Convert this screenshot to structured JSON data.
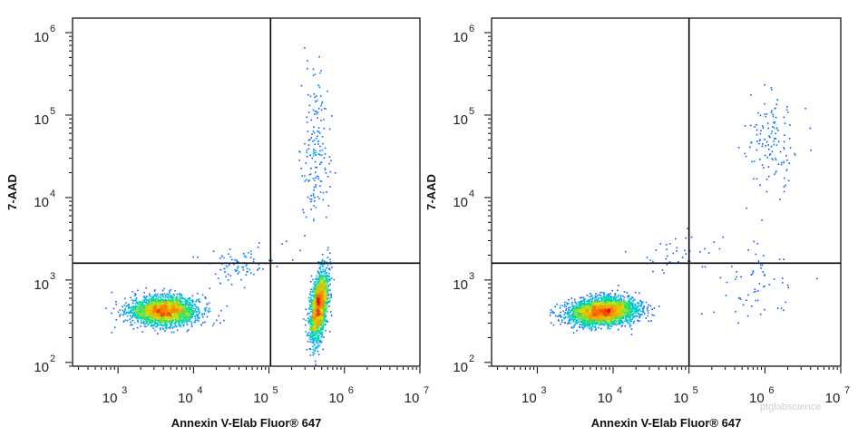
{
  "watermark": "ptglabscience",
  "colormap": [
    "#1a1aff",
    "#00b4ff",
    "#00e08a",
    "#d6e000",
    "#ff8a00",
    "#e01010"
  ],
  "chart_data": [
    {
      "type": "scatter",
      "subtype": "flow-cytometry-density-dot-plot",
      "xlabel": "Annexin V-Elab Fluor® 647",
      "ylabel": "7-AAD",
      "x_scale": "log",
      "y_scale": "log",
      "xlim": [
        250,
        10000000
      ],
      "ylim": [
        90,
        1500000
      ],
      "x_ticks": [
        {
          "base": "10",
          "exp": "3",
          "value": 1000
        },
        {
          "base": "10",
          "exp": "4",
          "value": 10000
        },
        {
          "base": "10",
          "exp": "5",
          "value": 100000
        },
        {
          "base": "10",
          "exp": "6",
          "value": 1000000
        },
        {
          "base": "10",
          "exp": "7",
          "value": 10000000
        }
      ],
      "y_ticks": [
        {
          "base": "10",
          "exp": "2",
          "value": 100
        },
        {
          "base": "10",
          "exp": "3",
          "value": 1000
        },
        {
          "base": "10",
          "exp": "4",
          "value": 10000
        },
        {
          "base": "10",
          "exp": "5",
          "value": 100000
        },
        {
          "base": "10",
          "exp": "6",
          "value": 1000000
        }
      ],
      "gate": {
        "x": 105000,
        "y": 1600
      },
      "populations": [
        {
          "cx": 4000,
          "cy": 430,
          "sx": 0.22,
          "sy": 0.085,
          "rho": 0,
          "n": 2600
        },
        {
          "cx": 450000,
          "cy": 500,
          "sx": 0.06,
          "sy": 0.21,
          "rho": 0.5,
          "n": 1900
        },
        {
          "cx": 400000,
          "cy": 40000,
          "sx": 0.1,
          "sy": 0.5,
          "rho": 0.2,
          "n": 170
        },
        {
          "cx": 40000,
          "cy": 1500,
          "sx": 0.3,
          "sy": 0.12,
          "rho": 0.4,
          "n": 90
        }
      ]
    },
    {
      "type": "scatter",
      "subtype": "flow-cytometry-density-dot-plot",
      "xlabel": "Annexin V-Elab Fluor® 647",
      "ylabel": "7-AAD",
      "x_scale": "log",
      "y_scale": "log",
      "xlim": [
        250,
        10000000
      ],
      "ylim": [
        90,
        1500000
      ],
      "x_ticks": [
        {
          "base": "10",
          "exp": "3",
          "value": 1000
        },
        {
          "base": "10",
          "exp": "4",
          "value": 10000
        },
        {
          "base": "10",
          "exp": "5",
          "value": 100000
        },
        {
          "base": "10",
          "exp": "6",
          "value": 1000000
        },
        {
          "base": "10",
          "exp": "7",
          "value": 10000000
        }
      ],
      "y_ticks": [
        {
          "base": "10",
          "exp": "2",
          "value": 100
        },
        {
          "base": "10",
          "exp": "3",
          "value": 1000
        },
        {
          "base": "10",
          "exp": "4",
          "value": 10000
        },
        {
          "base": "10",
          "exp": "5",
          "value": 100000
        },
        {
          "base": "10",
          "exp": "6",
          "value": 1000000
        }
      ],
      "gate": {
        "x": 100000,
        "y": 1600
      },
      "populations": [
        {
          "cx": 7000,
          "cy": 420,
          "sx": 0.22,
          "sy": 0.08,
          "rho": 0.15,
          "n": 3400
        },
        {
          "cx": 1200000,
          "cy": 45000,
          "sx": 0.17,
          "sy": 0.32,
          "rho": 0.1,
          "n": 130
        },
        {
          "cx": 800000,
          "cy": 900,
          "sx": 0.25,
          "sy": 0.25,
          "rho": 0,
          "n": 60
        },
        {
          "cx": 70000,
          "cy": 2200,
          "sx": 0.25,
          "sy": 0.12,
          "rho": 0.3,
          "n": 40
        }
      ]
    }
  ]
}
